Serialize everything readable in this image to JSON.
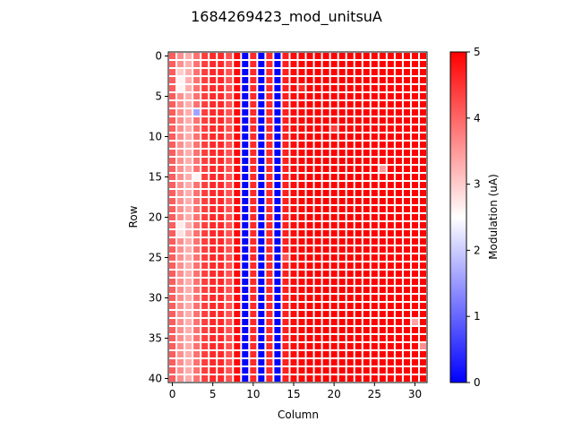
{
  "chart_data": {
    "type": "heatmap",
    "title": "1684269423_mod_unitsuA",
    "xlabel": "Column",
    "ylabel": "Row",
    "colorbar_label": "Modulation (uA)",
    "rows": 41,
    "cols": 32,
    "x_ticks": [
      0,
      5,
      10,
      15,
      20,
      25,
      30
    ],
    "y_ticks": [
      0,
      5,
      10,
      15,
      20,
      25,
      30,
      35,
      40
    ],
    "colorbar_ticks": [
      0,
      1,
      2,
      3,
      4,
      5
    ],
    "vmin": 0,
    "vmax": 5,
    "colormap": [
      "#0000ff",
      "#ffffff",
      "#ff0000"
    ],
    "cell_gap_color": "#ffffff",
    "default_value": 5.0,
    "column_values": {
      "0": 4.1,
      "1": 3.6,
      "2": 3.3,
      "3": 3.9,
      "4": 4.4,
      "5": 4.6,
      "6": 4.6,
      "7": 4.2,
      "8": 4.9,
      "9": 0.0,
      "10": 4.6,
      "11": 0.0,
      "12": 4.6,
      "13": 0.0,
      "14": 4.7,
      "15": 4.9,
      "16": 4.95
    },
    "outliers": [
      {
        "row": 2,
        "col": 1,
        "value": 3.0
      },
      {
        "row": 3,
        "col": 1,
        "value": 2.6
      },
      {
        "row": 4,
        "col": 1,
        "value": 2.6
      },
      {
        "row": 7,
        "col": 3,
        "value": 1.6
      },
      {
        "row": 15,
        "col": 3,
        "value": 2.6
      },
      {
        "row": 21,
        "col": 1,
        "value": 2.7
      },
      {
        "row": 22,
        "col": 1,
        "value": 2.8
      },
      {
        "row": 9,
        "col": 20,
        "value": 4.4
      },
      {
        "row": 14,
        "col": 26,
        "value": 3.5
      },
      {
        "row": 33,
        "col": 30,
        "value": 3.4
      },
      {
        "row": 36,
        "col": 31,
        "value": 3.6
      },
      {
        "row": 4,
        "col": 16,
        "value": 4.6
      },
      {
        "row": 25,
        "col": 14,
        "value": 4.2
      }
    ]
  }
}
